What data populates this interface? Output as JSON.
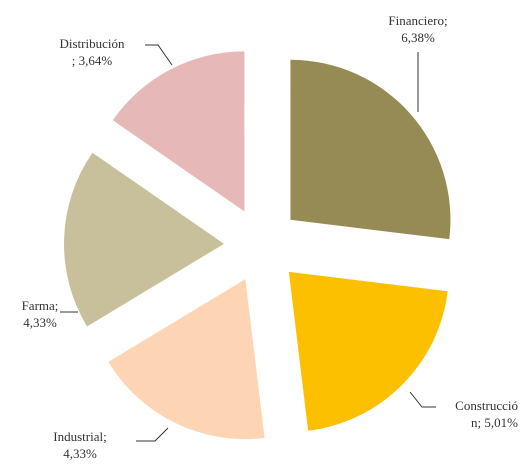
{
  "chart_data": {
    "type": "pie",
    "values": [
      6.38,
      5.01,
      4.33,
      4.33,
      3.64
    ],
    "value_labels": [
      [
        "Financiero;",
        "6,38%"
      ],
      [
        "Construcció",
        "n; 5,01%"
      ],
      [
        "Industrial;",
        "4,33%"
      ],
      [
        "Farma;",
        "4,33%"
      ],
      [
        "Distribución",
        "; 3,64%"
      ]
    ],
    "colors": [
      "#968b54",
      "#fdc000",
      "#fdd5b4",
      "#c7c09a",
      "#e6b9b8"
    ]
  }
}
